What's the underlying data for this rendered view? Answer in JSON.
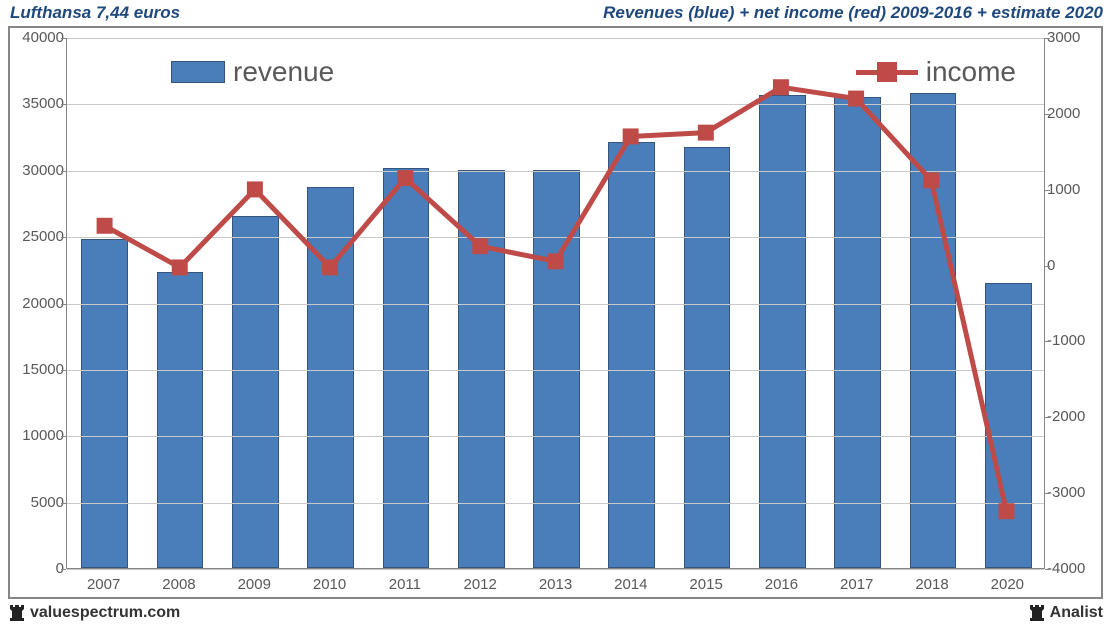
{
  "header": {
    "title_left": "Lufthansa 7,44 euros",
    "title_right": "Revenues (blue) + net income (red) 2009-2016 + estimate 2020",
    "title_color": "#1f497d",
    "title_fontsize": 17
  },
  "chart": {
    "type": "bar+line-dual-axis",
    "background_color": "#ffffff",
    "border_color": "#868686",
    "grid_color": "#c9c9c9",
    "axis_label_color": "#595959",
    "axis_label_fontsize": 15,
    "categories": [
      "2007",
      "2008",
      "2009",
      "2010",
      "2011",
      "2012",
      "2013",
      "2014",
      "2015",
      "2016",
      "2017",
      "2018",
      "2020"
    ],
    "left_axis": {
      "min": 0,
      "max": 40000,
      "tick_step": 5000
    },
    "right_axis": {
      "min": -4000,
      "max": 3000,
      "tick_step": 1000
    },
    "bars": {
      "series_name": "revenue",
      "color": "#4a7ebb",
      "border_color": "#35557d",
      "width_ratio": 0.62,
      "values": [
        24800,
        22300,
        26500,
        28700,
        30100,
        30000,
        30000,
        32100,
        31700,
        35600,
        35500,
        35800,
        21500
      ]
    },
    "line": {
      "series_name": "income",
      "color": "#be4b48",
      "line_width": 5,
      "marker_size": 16,
      "marker_shape": "square",
      "values": [
        520,
        -30,
        1000,
        -30,
        1150,
        250,
        50,
        1700,
        1750,
        2350,
        2200,
        1120,
        -3250
      ]
    },
    "legend": {
      "revenue_label": "revenue",
      "income_label": "income",
      "label_fontsize": 28,
      "label_color": "#595959"
    }
  },
  "footer": {
    "left_text": "valuespectrum.com",
    "right_text": "Analist",
    "icon_name": "rook-icon",
    "icon_color": "#222222",
    "text_color": "#333333",
    "fontsize": 16
  }
}
